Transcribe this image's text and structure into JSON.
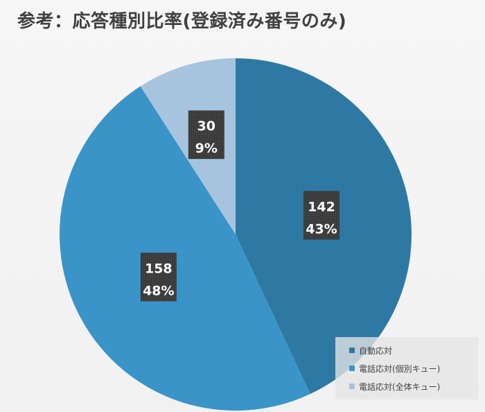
{
  "chart_data": {
    "type": "pie",
    "title": "参考：応答種別比率(登録済み番号のみ)",
    "slices": [
      {
        "name": "自動応対",
        "value": 142,
        "percent_label": "43%",
        "color": "#2e79a3"
      },
      {
        "name": "電話応対(個別キュー)",
        "value": 158,
        "percent_label": "48%",
        "color": "#3a94c7"
      },
      {
        "name": "電話応対(全体キュー)",
        "value": 30,
        "percent_label": "9%",
        "color": "#a7c4de"
      }
    ],
    "legend_position": "bottom-right",
    "label_style": "value and percent in dark boxes"
  }
}
